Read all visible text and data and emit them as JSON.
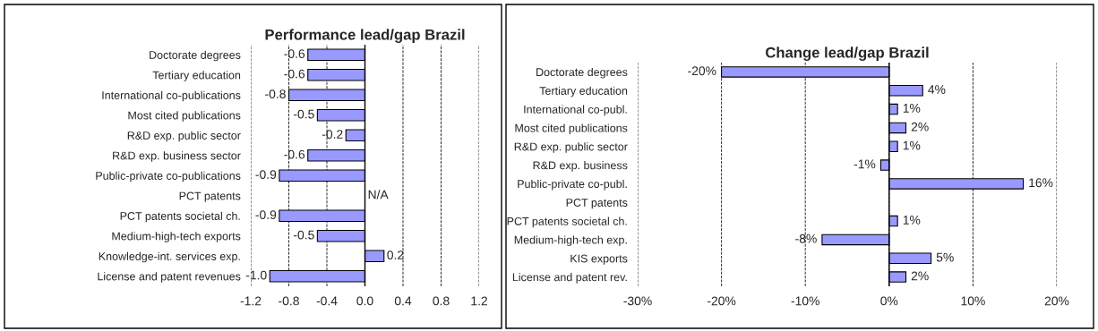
{
  "chart_data": [
    {
      "type": "bar",
      "orientation": "horizontal",
      "title": "Performance lead/gap Brazil",
      "categories": [
        "Doctorate degrees",
        "Tertiary education",
        "International co-publications",
        "Most cited publications",
        "R&D exp. public sector",
        "R&D exp. business sector",
        "Public-private co-publications",
        "PCT patents",
        "PCT patents societal ch.",
        "Medium-high-tech exports",
        "Knowledge-int. services exp.",
        "License and patent revenues"
      ],
      "values": [
        -0.6,
        -0.6,
        -0.8,
        -0.5,
        -0.2,
        -0.6,
        -0.9,
        null,
        -0.9,
        -0.5,
        0.2,
        -1.0
      ],
      "value_labels": [
        "-0.6",
        "-0.6",
        "-0.8",
        "-0.5",
        "-0.2",
        "-0.6",
        "-0.9",
        "N/A",
        "-0.9",
        "-0.5",
        "0.2",
        "-1.0"
      ],
      "color": "#9999ff",
      "xlim": [
        -1.2,
        1.2
      ],
      "xticks": [
        -1.2,
        -0.8,
        -0.4,
        {
          "value": 0.0,
          "label": "0.0"
        },
        0.4,
        0.8,
        1.2
      ],
      "grid": "x",
      "line_style": "dashed"
    },
    {
      "type": "bar",
      "orientation": "horizontal",
      "title": "Change lead/gap Brazil",
      "categories": [
        "Doctorate degrees",
        "Tertiary education",
        "International co-publ.",
        "Most cited publications",
        "R&D exp. public sector",
        "R&D exp. business",
        "Public-private co-publ.",
        "PCT patents",
        "PCT patents societal ch.",
        "Medium-high-tech exp.",
        "KIS exports",
        "License and patent rev."
      ],
      "values": [
        -20,
        4,
        1,
        2,
        1,
        -1,
        16,
        null,
        1,
        -8,
        5,
        2
      ],
      "value_labels": [
        "-20%",
        "4%",
        "1%",
        "2%",
        "1%",
        "-1%",
        "16%",
        null,
        "1%",
        "-8%",
        "5%",
        "2%"
      ],
      "color": "#9999ff",
      "xlim": [
        -30,
        20
      ],
      "xticks": [
        {
          "value": -30,
          "label": "-30%"
        },
        {
          "value": -20,
          "label": "-20%"
        },
        {
          "value": -10,
          "label": "-10%"
        },
        {
          "value": 0,
          "label": "0%"
        },
        {
          "value": 10,
          "label": "10%"
        },
        {
          "value": 20,
          "label": "20%"
        }
      ],
      "grid": "x",
      "line_style": "dashed"
    }
  ]
}
